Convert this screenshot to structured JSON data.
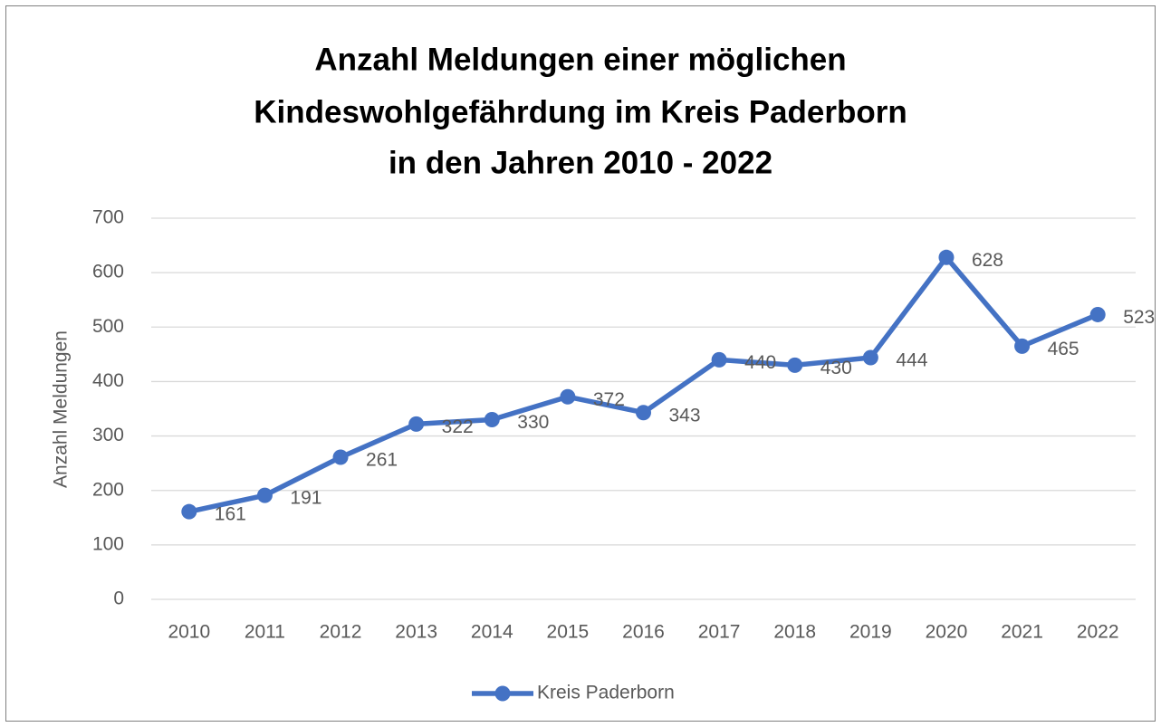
{
  "chart_data": {
    "type": "line",
    "title": [
      "Anzahl Meldungen einer möglichen",
      "Kindeswohlgefährdung im Kreis Paderborn",
      "in den Jahren 2010 - 2022"
    ],
    "y_label": "Anzahl Meldungen",
    "categories": [
      "2010",
      "2011",
      "2012",
      "2013",
      "2014",
      "2015",
      "2016",
      "2017",
      "2018",
      "2019",
      "2020",
      "2021",
      "2022"
    ],
    "series": [
      {
        "name": "Kreis Paderborn",
        "color": "#4472c4",
        "values": [
          161,
          191,
          261,
          322,
          330,
          372,
          343,
          440,
          430,
          444,
          628,
          465,
          523
        ]
      }
    ],
    "ylim": [
      0,
      700
    ],
    "yticks": [
      0,
      100,
      200,
      300,
      400,
      500,
      600,
      700
    ],
    "grid": true,
    "legend": "bottom"
  }
}
